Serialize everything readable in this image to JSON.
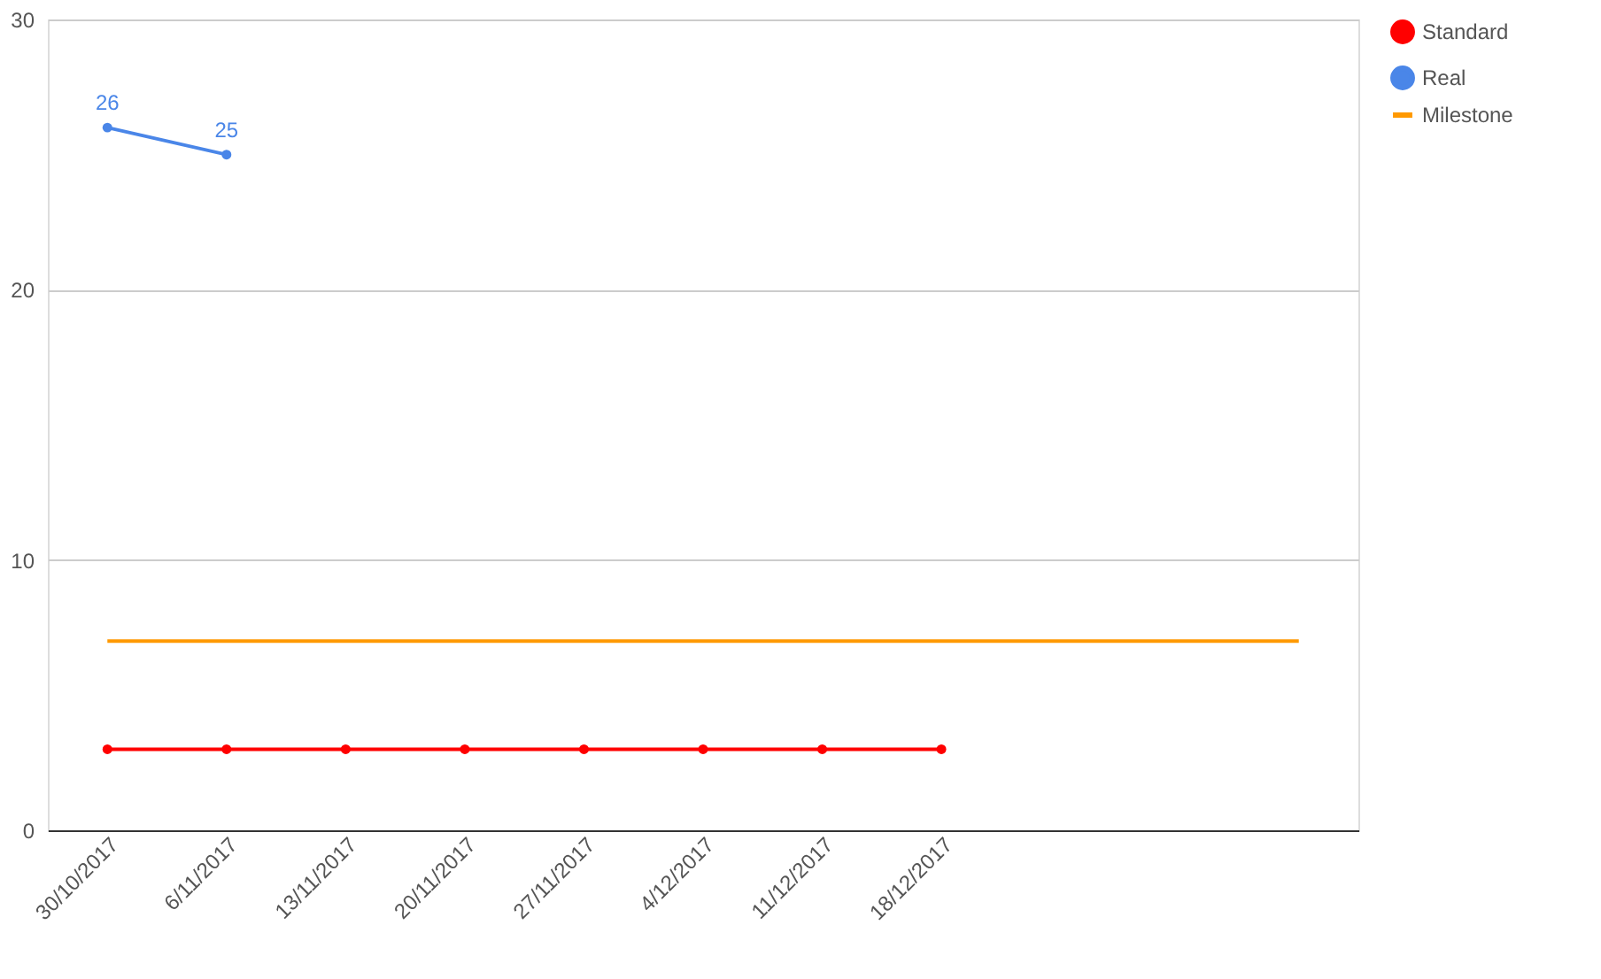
{
  "chart_data": {
    "type": "line",
    "categories": [
      "30/10/2017",
      "6/11/2017",
      "13/11/2017",
      "20/11/2017",
      "27/11/2017",
      "4/12/2017",
      "11/12/2017",
      "18/12/2017",
      null,
      null,
      null
    ],
    "series": [
      {
        "name": "Standard",
        "color": "#ff0000",
        "marker": "circle",
        "values": [
          3,
          3,
          3,
          3,
          3,
          3,
          3,
          3,
          null,
          null,
          null
        ]
      },
      {
        "name": "Real",
        "color": "#4a86e8",
        "marker": "circle",
        "values": [
          26,
          25,
          null,
          null,
          null,
          null,
          null,
          null,
          null,
          null,
          null
        ],
        "value_labels": [
          "26",
          "25",
          null,
          null,
          null,
          null,
          null,
          null,
          null,
          null,
          null
        ]
      },
      {
        "name": "Milestone",
        "color": "#ff9900",
        "marker": "none",
        "values": [
          7,
          7,
          7,
          7,
          7,
          7,
          7,
          7,
          7,
          7,
          7
        ]
      }
    ],
    "ylim": [
      0,
      30
    ],
    "yticks": [
      0,
      10,
      20,
      30
    ],
    "grid": "y",
    "legend": "top right"
  }
}
